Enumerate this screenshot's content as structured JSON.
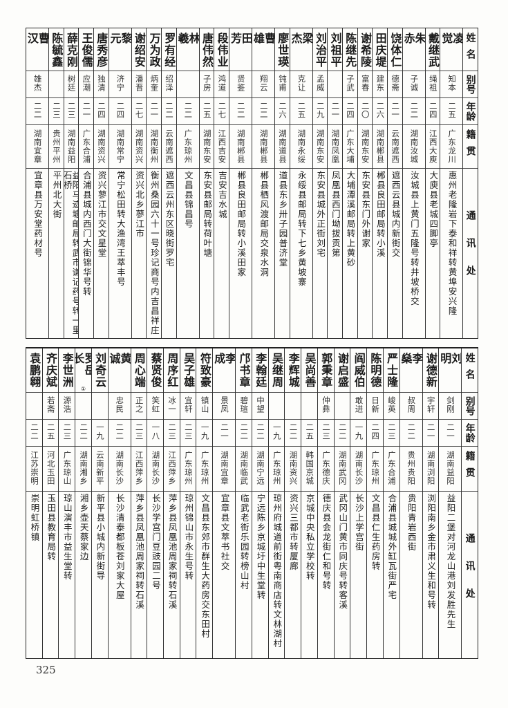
{
  "headers": {
    "name": "姓名",
    "alias": "别号",
    "age": "年龄",
    "origin": "籍贯",
    "address": "通讯处"
  },
  "top_table": [
    {
      "name": "凌觉",
      "alias": "知本",
      "age": "二五",
      "origin": "广东龙川",
      "address": "惠州老隆岩下泰和祥转黄埠安兴隆"
    },
    {
      "name": "戴继武",
      "alias": "绳祖",
      "age": "二四",
      "origin": "江西大庾",
      "address": "大庾县老城四脚亭"
    },
    {
      "name": "朱赤",
      "alias": "子诚",
      "age": "二二",
      "origin": "湖南汝城",
      "address": "汝城县上黄门五隆号转井坡桥交"
    },
    {
      "name": "饶体仁",
      "alias": "德斋",
      "age": "二一",
      "origin": "云南遮西",
      "address": "遮西云县城内新街交"
    },
    {
      "name": "田庆堤",
      "alias": "建东",
      "age": "二六",
      "origin": "湖南郴县",
      "address": "郴县良田邮局转小溪"
    },
    {
      "name": "谢希陵",
      "alias": "富春",
      "age": "二〇",
      "origin": "湖南东安",
      "address": "东安县东门外谢家"
    },
    {
      "name": "陈继先",
      "alias": "子武",
      "age": "二四",
      "origin": "广东大埔",
      "address": "大埔潭溪邮局转上黄砂"
    },
    {
      "name": "刘祖平",
      "alias": "",
      "age": "二一",
      "origin": "湖南凤凰",
      "address": "凤凰县西门坳拔贡第"
    },
    {
      "name": "刘治平",
      "alias": "孟威",
      "age": "二九",
      "origin": "湖南东安",
      "address": "东安县城外正街刘宅"
    },
    {
      "name": "梁杰",
      "alias": "克让",
      "age": "二五",
      "origin": "湖南永绥",
      "address": "永绥县邮局转下七乡黄坡寨"
    },
    {
      "name": "廖世瑛",
      "alias": "钝甫",
      "age": "二六",
      "origin": "湖南道县",
      "address": "道县东乡卅子园普济堂"
    },
    {
      "name": "曹雄",
      "alias": "翔云",
      "age": "二二",
      "origin": "湖南郴县",
      "address": "郴县栖风渡邮局交泉水洞"
    },
    {
      "name": "田芳",
      "alias": "贤鉴",
      "age": "二二",
      "origin": "湖南郴县",
      "address": "郴县良田邮局转小溪田家"
    },
    {
      "name": "段伟业",
      "alias": "鸿道",
      "age": "二七",
      "origin": "江西吉安",
      "address": "吉安吉水城"
    },
    {
      "name": "唐伟然",
      "alias": "子房",
      "age": "二五",
      "origin": "湖南东安",
      "address": "东安县邮局转荷叶塘"
    },
    {
      "name": "林羲",
      "alias": "",
      "age": "二二",
      "origin": "广东琼州",
      "address": "文昌县锦昌号"
    },
    {
      "name": "罗有经",
      "alias": "绍泽",
      "age": "二二",
      "origin": "云南遮西",
      "address": "遮西云州东区晓街罗宅"
    },
    {
      "name": "万为政",
      "alias": "炳奎",
      "age": "二一",
      "origin": "湖南衡州",
      "address": "衡州桑园六十一号珍记商号内吉昌祥庄"
    },
    {
      "name": "谢绍安",
      "alias": "潘晋",
      "age": "二七",
      "origin": "湖南资兴",
      "address": "资兴北乡蓼江市"
    },
    {
      "name": "黎元",
      "alias": "济宁",
      "age": "二四",
      "origin": "湖南常宁",
      "address": "常宁松田转大渔湾王萃丰号"
    },
    {
      "name": "唐秀彦",
      "alias": "独清",
      "age": "二四",
      "origin": "湖南资兴",
      "address": "资兴蓼江市交文星堂"
    },
    {
      "name": "王俊儒",
      "alias": "应潮",
      "age": "二一",
      "origin": "广东合浦",
      "address": "合浦县城内西门大街锦华号转"
    },
    {
      "name": "薛克刚",
      "alias": "树廷",
      "age": "二三",
      "origin": "湖南益阳",
      "address": "益阳马迹塘邮局转武市谦记药号转一里石桥"
    },
    {
      "name": "陈毓鑫",
      "alias": "",
      "age": "二三",
      "origin": "贵州平州",
      "address": "平州北大街"
    },
    {
      "name": "曹汉",
      "alias": "雄杰",
      "age": "二二",
      "origin": "湖南宜章",
      "address": "宜章县万安堂药材号"
    }
  ],
  "bottom_table": [
    {
      "name": "刘明",
      "alias": "剑刚",
      "age": "二一",
      "origin": "湖南益阳",
      "address": "益阳二堡对河龙山港刘发胜先生"
    },
    {
      "name": "谢德新",
      "alias": "宇轩",
      "age": "二一",
      "origin": "湖南浏阳",
      "address": "浏阳南乡金市肃义生和号转"
    },
    {
      "name": "李燊",
      "alias": "叔周",
      "age": "二二",
      "origin": "贵州贵阳",
      "address": "贵阳青岩西街"
    },
    {
      "name": "严士隆",
      "alias": "峻英",
      "age": "二三",
      "origin": "广东合浦",
      "address": "合浦县城城外缸瓦街严宅"
    },
    {
      "name": "陈明德",
      "alias": "日新",
      "age": "二四",
      "origin": "广东琼州",
      "address": "文昌县仁生药房转"
    },
    {
      "name": "阎威伯",
      "alias": "敢进",
      "age": "一九",
      "origin": "湖南长沙",
      "address": "长沙上学宫街"
    },
    {
      "name": "谢启盛",
      "alias": "",
      "age": "二二",
      "origin": "湖南武冈",
      "address": "武冈山门黄市同庆号转客溪"
    },
    {
      "name": "郭秉章",
      "alias": "仲彝",
      "age": "二三",
      "origin": "广东德庆",
      "address": "德庆县会龙街仁和号转"
    },
    {
      "name": "吴尚善",
      "alias": "",
      "age": "二五",
      "origin": "韩国京城",
      "address": "京城中央私立学校转"
    },
    {
      "name": "李辉城",
      "alias": "",
      "age": "二二",
      "origin": "湖南资兴",
      "address": "资兴三都市转厦廊"
    },
    {
      "name": "吴继周",
      "alias": "",
      "age": "一九",
      "origin": "广东琼州",
      "address": "琼州府城道前街粤南商店转文林湖村"
    },
    {
      "name": "李翰廷",
      "alias": "中望",
      "age": "二二",
      "origin": "湖南宁远",
      "address": "宁远陈乡京城圩中生堂转"
    },
    {
      "name": "邝书章",
      "alias": "碧瑄",
      "age": "二二",
      "origin": "湖南临武",
      "address": "临武老街乐园转榜山村"
    },
    {
      "name": "李成",
      "alias": "景凤",
      "age": "二一",
      "origin": "湖南宜章",
      "address": "宜章县文萃书社交"
    },
    {
      "name": "符致豪",
      "alias": "镇山",
      "age": "一九",
      "origin": "广东琼州",
      "address": "文昌县东郊市群生大药房交东田村"
    },
    {
      "name": "吴子雄",
      "alias": "宜轩",
      "age": "二三",
      "origin": "广东琼州",
      "address": "琼州锦山市永生号转"
    },
    {
      "name": "周序红",
      "alias": "冰一",
      "age": "二三",
      "origin": "江西萍乡",
      "address": "萍乡县凤凰池周家祠转石溪"
    },
    {
      "name": "蔡贤俊",
      "alias": "笑虹",
      "age": "一八",
      "origin": "湖南长沙",
      "address": "长沙学宫门豆豉园二号"
    },
    {
      "name": "周心端",
      "alias": "正之",
      "age": "二三",
      "origin": "江西萍乡",
      "address": "萍乡县凤凰池周家祠转石溪"
    },
    {
      "name": "黄诚",
      "alias": "忠民",
      "age": "二二",
      "origin": "湖南长沙",
      "address": "长沙清泰都板苍刘家大屋"
    },
    {
      "name": "刘奇云",
      "alias": "",
      "age": "一九",
      "origin": "云南新平",
      "address": "新平县小城内新街导"
    },
    {
      "name": "罗岳长",
      "note": "①",
      "alias": "",
      "age": "二二",
      "origin": "湖南湘乡",
      "address": "湘乡壶天蔡家边"
    },
    {
      "name": "李世洲",
      "alias": "源浩",
      "age": "二三",
      "origin": "广东琼山",
      "address": "琼山演丰市益生堂转"
    },
    {
      "name": "齐庆斌",
      "alias": "若斋",
      "age": "二五",
      "origin": "河北玉田",
      "address": "玉田县教育局转"
    },
    {
      "name": "袁鹏翱",
      "alias": "",
      "age": "二二",
      "origin": "江苏崇明",
      "address": "崇明虹桥镇"
    }
  ],
  "page_number": "325"
}
